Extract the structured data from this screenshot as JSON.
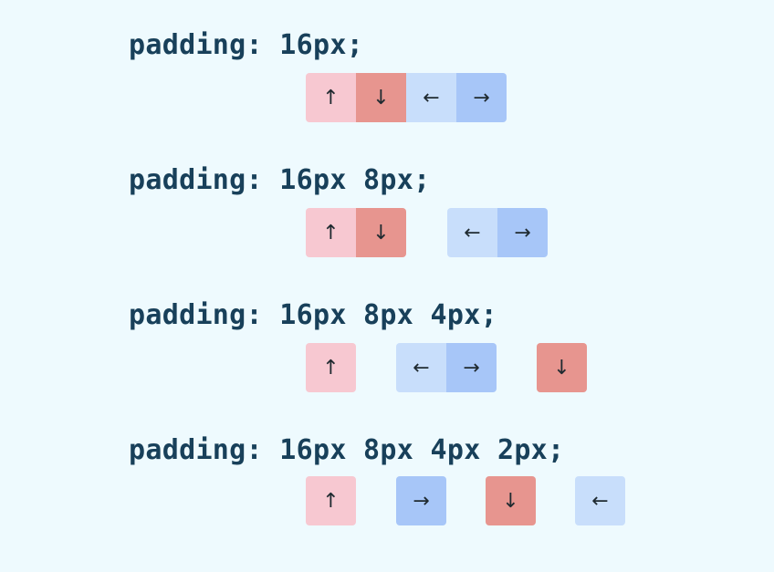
{
  "examples": [
    {
      "code": "padding: 16px;",
      "groups": [
        [
          {
            "side": "top",
            "glyph": "↑"
          },
          {
            "side": "bottom",
            "glyph": "↓"
          },
          {
            "side": "left",
            "glyph": "←"
          },
          {
            "side": "right",
            "glyph": "→"
          }
        ]
      ]
    },
    {
      "code": "padding: 16px 8px;",
      "groups": [
        [
          {
            "side": "top",
            "glyph": "↑"
          },
          {
            "side": "bottom",
            "glyph": "↓"
          }
        ],
        [
          {
            "side": "left",
            "glyph": "←"
          },
          {
            "side": "right",
            "glyph": "→"
          }
        ]
      ]
    },
    {
      "code": "padding: 16px 8px 4px;",
      "groups": [
        [
          {
            "side": "top",
            "glyph": "↑"
          }
        ],
        [
          {
            "side": "left",
            "glyph": "←"
          },
          {
            "side": "right",
            "glyph": "→"
          }
        ],
        [
          {
            "side": "bottom",
            "glyph": "↓"
          }
        ]
      ]
    },
    {
      "code": "padding: 16px 8px 4px 2px;",
      "groups": [
        [
          {
            "side": "top",
            "glyph": "↑"
          }
        ],
        [
          {
            "side": "right",
            "glyph": "→"
          }
        ],
        [
          {
            "side": "bottom",
            "glyph": "↓"
          }
        ],
        [
          {
            "side": "left",
            "glyph": "←"
          }
        ]
      ]
    }
  ],
  "colors": {
    "background": "#eefafe",
    "code_text": "#18405a",
    "top": "#f7c8d1",
    "bottom": "#e7958f",
    "left": "#c8defb",
    "right": "#a7c6f8"
  }
}
